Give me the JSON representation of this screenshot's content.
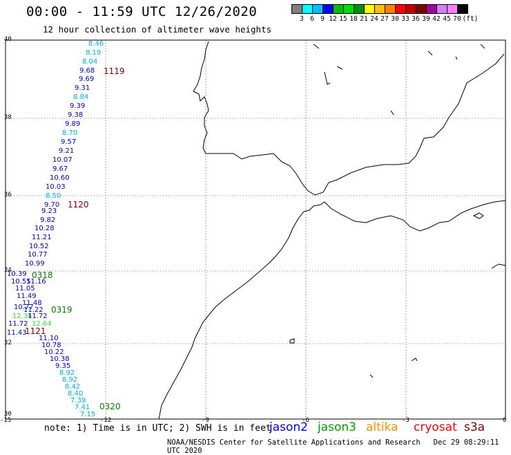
{
  "title": "00:00 - 11:59 UTC 12/26/2020",
  "subtitle": "12 hour collection of altimeter wave heights",
  "colorbar": {
    "colors": [
      "#808080",
      "#00ffff",
      "#00c0ff",
      "#0000ff",
      "#00c000",
      "#00e000",
      "#009000",
      "#ffff00",
      "#ffc000",
      "#ff8000",
      "#ff0000",
      "#c00000",
      "#800000",
      "#a000a0",
      "#d080ff",
      "#ff80ff",
      "#000000"
    ],
    "labels": [
      "3",
      "6",
      "9",
      "12",
      "15",
      "18",
      "21",
      "24",
      "27",
      "30",
      "33",
      "36",
      "39",
      "42",
      "45",
      "70",
      "(ft)"
    ]
  },
  "axes": {
    "lat_labels": [
      "40",
      "38",
      "36",
      "34",
      "32",
      "30"
    ],
    "lon_labels": [
      "-15",
      "-12",
      "-9",
      "-6",
      "-3",
      "0"
    ]
  },
  "note": "note: 1) Time is in UTC; 2) SWH is in feet",
  "legend": [
    {
      "name": "jason2",
      "color": "#0000ff"
    },
    {
      "name": "jason3",
      "color": "#00a000"
    },
    {
      "name": "altika",
      "color": "#ff9000"
    },
    {
      "name": "cryosat",
      "color": "#ff0000"
    },
    {
      "name": "s3a",
      "color": "#800000"
    }
  ],
  "footer_left": "NOAA/NESDIS Center for Satellite Applications and Research",
  "footer_right": "Dec 29 08:29:11 UTC 2020",
  "time_labels": [
    {
      "text": "1119",
      "color": "#800000"
    },
    {
      "text": "1120",
      "color": "#800000"
    },
    {
      "text": "0318",
      "color": "#008000"
    },
    {
      "text": "0319",
      "color": "#008000"
    },
    {
      "text": "1121",
      "color": "#800000"
    },
    {
      "text": "0320",
      "color": "#008000"
    }
  ],
  "swh_values": [
    {
      "v": "8.46",
      "c": "#00b0e0"
    },
    {
      "v": "8.19",
      "c": "#00b0e0"
    },
    {
      "v": "8.04",
      "c": "#00b0e0"
    },
    {
      "v": "9.68",
      "c": "#0000c0"
    },
    {
      "v": "9.69",
      "c": "#0000c0"
    },
    {
      "v": "9.31",
      "c": "#0000c0"
    },
    {
      "v": "8.84",
      "c": "#00b0e0"
    },
    {
      "v": "9.39",
      "c": "#0000c0"
    },
    {
      "v": "9.38",
      "c": "#0000c0"
    },
    {
      "v": "9.89",
      "c": "#0000c0"
    },
    {
      "v": "8.70",
      "c": "#00b0e0"
    },
    {
      "v": "9.57",
      "c": "#0000c0"
    },
    {
      "v": "9.21",
      "c": "#0000c0"
    },
    {
      "v": "10.07",
      "c": "#0000c0"
    },
    {
      "v": "9.67",
      "c": "#0000c0"
    },
    {
      "v": "10.60",
      "c": "#0000c0"
    },
    {
      "v": "10.03",
      "c": "#0000c0"
    },
    {
      "v": "8.50",
      "c": "#00b0e0"
    },
    {
      "v": "9.70",
      "c": "#0000c0"
    },
    {
      "v": "9.23",
      "c": "#0000c0"
    },
    {
      "v": "9.82",
      "c": "#0000c0"
    },
    {
      "v": "10.28",
      "c": "#0000c0"
    },
    {
      "v": "11.21",
      "c": "#0000c0"
    },
    {
      "v": "10.52",
      "c": "#0000c0"
    },
    {
      "v": "10.77",
      "c": "#0000c0"
    },
    {
      "v": "10.99",
      "c": "#0000c0"
    },
    {
      "v": "10.39",
      "c": "#0000c0"
    },
    {
      "v": "10.55",
      "c": "#0000c0"
    },
    {
      "v": "11.16",
      "c": "#0000c0"
    },
    {
      "v": "11.05",
      "c": "#0000c0"
    },
    {
      "v": "11.49",
      "c": "#0000c0"
    },
    {
      "v": "11.48",
      "c": "#0000c0"
    },
    {
      "v": "10.77",
      "c": "#0000c0"
    },
    {
      "v": "11.22",
      "c": "#0000c0"
    },
    {
      "v": "12.34",
      "c": "#40d040"
    },
    {
      "v": "11.72",
      "c": "#0000c0"
    },
    {
      "v": "11.72",
      "c": "#0000c0"
    },
    {
      "v": "12.64",
      "c": "#40d040"
    },
    {
      "v": "11.43",
      "c": "#0000c0"
    },
    {
      "v": "11.10",
      "c": "#0000c0"
    },
    {
      "v": "10.78",
      "c": "#0000c0"
    },
    {
      "v": "10.22",
      "c": "#0000c0"
    },
    {
      "v": "10.38",
      "c": "#0000c0"
    },
    {
      "v": "9.35",
      "c": "#0000c0"
    },
    {
      "v": "8.92",
      "c": "#00b0e0"
    },
    {
      "v": "8.92",
      "c": "#00b0e0"
    },
    {
      "v": "8.42",
      "c": "#00b0e0"
    },
    {
      "v": "8.40",
      "c": "#00b0e0"
    },
    {
      "v": "7.39",
      "c": "#00b0e0"
    },
    {
      "v": "7.41",
      "c": "#00b0e0"
    },
    {
      "v": "7.15",
      "c": "#00b0e0"
    }
  ]
}
